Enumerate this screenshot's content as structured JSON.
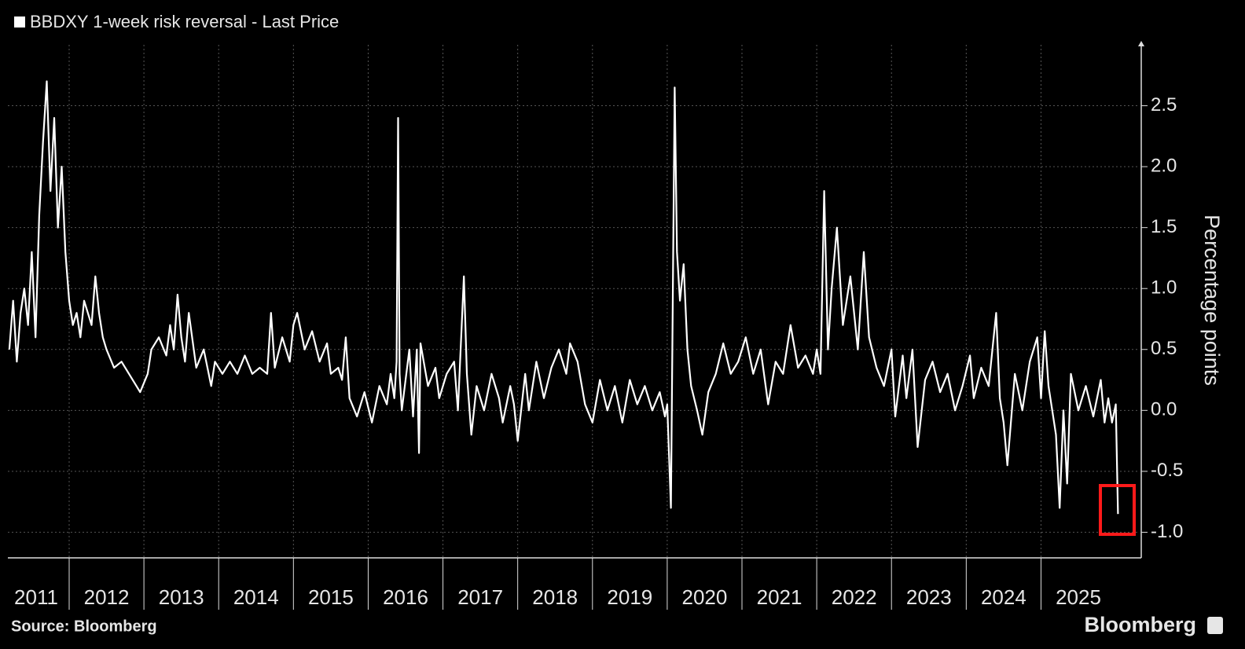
{
  "chart_data": {
    "type": "line",
    "y_label": "Percentage points",
    "source": "Source: Bloomberg",
    "brand": "Bloomberg",
    "xlim": [
      2011.18,
      2026.32
    ],
    "xticks": [
      2011,
      2012,
      2013,
      2014,
      2015,
      2016,
      2017,
      2018,
      2019,
      2020,
      2021,
      2022,
      2023,
      2024,
      2025
    ],
    "ylim": [
      -1.21,
      3.0
    ],
    "yticks": [
      {
        "value": -1,
        "label": "-1.0"
      },
      {
        "value": -0.5,
        "label": "-0.5"
      },
      {
        "value": 0,
        "label": "0.0"
      },
      {
        "value": 0.5,
        "label": "0.5"
      },
      {
        "value": 1,
        "label": "1.0"
      },
      {
        "value": 1.5,
        "label": "1.5"
      },
      {
        "value": 2,
        "label": "2.0"
      },
      {
        "value": 2.5,
        "label": "2.5"
      }
    ],
    "grid": true,
    "x": [
      2011.2,
      2011.25,
      2011.3,
      2011.35,
      2011.4,
      2011.45,
      2011.5,
      2011.55,
      2011.6,
      2011.65,
      2011.7,
      2011.75,
      2011.8,
      2011.85,
      2011.9,
      2011.95,
      2012.0,
      2012.05,
      2012.1,
      2012.15,
      2012.2,
      2012.3,
      2012.35,
      2012.4,
      2012.45,
      2012.5,
      2012.6,
      2012.7,
      2012.8,
      2012.9,
      2012.95,
      2013.05,
      2013.1,
      2013.2,
      2013.3,
      2013.35,
      2013.4,
      2013.45,
      2013.5,
      2013.55,
      2013.6,
      2013.7,
      2013.8,
      2013.9,
      2013.95,
      2014.05,
      2014.15,
      2014.25,
      2014.35,
      2014.45,
      2014.55,
      2014.65,
      2014.7,
      2014.75,
      2014.85,
      2014.95,
      2015.0,
      2015.05,
      2015.15,
      2015.25,
      2015.35,
      2015.45,
      2015.5,
      2015.6,
      2015.65,
      2015.7,
      2015.75,
      2015.85,
      2015.95,
      2016.05,
      2016.15,
      2016.25,
      2016.3,
      2016.35,
      2016.38,
      2016.4,
      2016.42,
      2016.45,
      2016.55,
      2016.6,
      2016.65,
      2016.68,
      2016.7,
      2016.8,
      2016.9,
      2016.95,
      2017.05,
      2017.15,
      2017.2,
      2017.28,
      2017.32,
      2017.38,
      2017.45,
      2017.55,
      2017.65,
      2017.75,
      2017.8,
      2017.9,
      2017.95,
      2018.0,
      2018.1,
      2018.15,
      2018.25,
      2018.35,
      2018.45,
      2018.55,
      2018.65,
      2018.7,
      2018.8,
      2018.9,
      2019.0,
      2019.1,
      2019.2,
      2019.3,
      2019.4,
      2019.5,
      2019.6,
      2019.7,
      2019.8,
      2019.9,
      2019.97,
      2020.0,
      2020.05,
      2020.1,
      2020.13,
      2020.17,
      2020.22,
      2020.27,
      2020.32,
      2020.4,
      2020.47,
      2020.55,
      2020.65,
      2020.75,
      2020.85,
      2020.95,
      2021.05,
      2021.15,
      2021.25,
      2021.35,
      2021.45,
      2021.55,
      2021.65,
      2021.75,
      2021.85,
      2021.95,
      2022.0,
      2022.05,
      2022.1,
      2022.15,
      2022.2,
      2022.27,
      2022.35,
      2022.45,
      2022.55,
      2022.63,
      2022.7,
      2022.8,
      2022.9,
      2023.0,
      2023.05,
      2023.15,
      2023.2,
      2023.28,
      2023.35,
      2023.45,
      2023.55,
      2023.65,
      2023.75,
      2023.85,
      2023.95,
      2024.05,
      2024.1,
      2024.2,
      2024.3,
      2024.4,
      2024.45,
      2024.5,
      2024.55,
      2024.65,
      2024.75,
      2024.85,
      2024.95,
      2025.0,
      2025.05,
      2025.1,
      2025.2,
      2025.25,
      2025.3,
      2025.35,
      2025.4,
      2025.5,
      2025.6,
      2025.7,
      2025.8,
      2025.85,
      2025.9,
      2025.95,
      2026.0,
      2026.03
    ],
    "series": [
      {
        "name": "BBDXY 1-week risk reversal - Last Price",
        "color": "#ffffff",
        "values": [
          0.5,
          0.9,
          0.4,
          0.8,
          1.0,
          0.7,
          1.3,
          0.6,
          1.6,
          2.2,
          2.7,
          1.8,
          2.4,
          1.5,
          2.0,
          1.3,
          0.9,
          0.7,
          0.8,
          0.6,
          0.9,
          0.7,
          1.1,
          0.8,
          0.6,
          0.5,
          0.35,
          0.4,
          0.3,
          0.2,
          0.15,
          0.3,
          0.5,
          0.6,
          0.45,
          0.7,
          0.5,
          0.95,
          0.6,
          0.4,
          0.8,
          0.35,
          0.5,
          0.2,
          0.4,
          0.3,
          0.4,
          0.3,
          0.45,
          0.3,
          0.35,
          0.3,
          0.8,
          0.35,
          0.6,
          0.4,
          0.7,
          0.8,
          0.5,
          0.65,
          0.4,
          0.55,
          0.3,
          0.35,
          0.25,
          0.6,
          0.1,
          -0.05,
          0.15,
          -0.1,
          0.2,
          0.05,
          0.3,
          0.1,
          0.4,
          2.4,
          0.3,
          0.0,
          0.5,
          -0.05,
          0.5,
          -0.35,
          0.55,
          0.2,
          0.35,
          0.1,
          0.3,
          0.4,
          0.0,
          1.1,
          0.3,
          -0.2,
          0.2,
          0.0,
          0.3,
          0.1,
          -0.1,
          0.2,
          0.05,
          -0.25,
          0.3,
          0.0,
          0.4,
          0.1,
          0.35,
          0.5,
          0.3,
          0.55,
          0.4,
          0.05,
          -0.1,
          0.25,
          0.0,
          0.2,
          -0.1,
          0.25,
          0.05,
          0.2,
          0.0,
          0.15,
          -0.05,
          0.05,
          -0.8,
          2.65,
          1.3,
          0.9,
          1.2,
          0.5,
          0.2,
          0.0,
          -0.2,
          0.15,
          0.3,
          0.55,
          0.3,
          0.4,
          0.6,
          0.3,
          0.5,
          0.05,
          0.4,
          0.3,
          0.7,
          0.35,
          0.45,
          0.3,
          0.5,
          0.3,
          1.8,
          0.5,
          1.0,
          1.5,
          0.7,
          1.1,
          0.5,
          1.3,
          0.6,
          0.35,
          0.2,
          0.5,
          -0.05,
          0.45,
          0.1,
          0.5,
          -0.3,
          0.25,
          0.4,
          0.15,
          0.3,
          0.0,
          0.2,
          0.45,
          0.1,
          0.35,
          0.2,
          0.8,
          0.1,
          -0.1,
          -0.45,
          0.3,
          0.0,
          0.4,
          0.6,
          0.1,
          0.65,
          0.2,
          -0.2,
          -0.8,
          0.0,
          -0.6,
          0.3,
          0.0,
          0.2,
          -0.05,
          0.25,
          -0.1,
          0.1,
          -0.1,
          0.05,
          -0.85
        ]
      }
    ]
  }
}
